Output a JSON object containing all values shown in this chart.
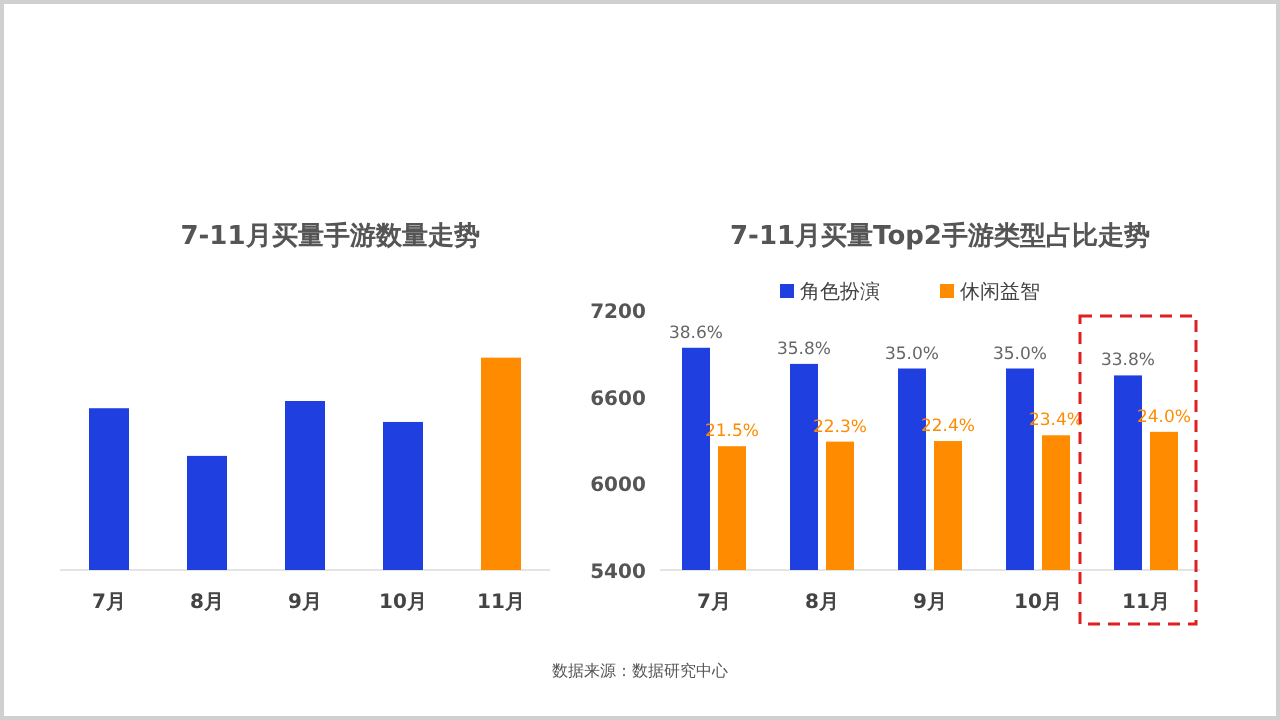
{
  "chart_data": [
    {
      "type": "bar",
      "title": "7-11月买量手游数量走势",
      "categories": [
        "7月",
        "8月",
        "9月",
        "10月",
        "11月"
      ],
      "values": [
        6520,
        6190,
        6570,
        6425,
        6870
      ],
      "colors": [
        "#1f3fe0",
        "#1f3fe0",
        "#1f3fe0",
        "#1f3fe0",
        "#ff8c00"
      ],
      "ylim": [
        5400,
        7200
      ],
      "yticks": [
        5400,
        6000,
        6600,
        7200
      ]
    },
    {
      "type": "bar",
      "title": "7-11月买量Top2手游类型占比走势",
      "categories": [
        "7月",
        "8月",
        "9月",
        "10月",
        "11月"
      ],
      "legend": "top",
      "series": [
        {
          "name": "角色扮演",
          "color": "#1f3fe0",
          "values": [
            38.6,
            35.8,
            35.0,
            35.0,
            33.8
          ],
          "value_labels": [
            "38.6%",
            "35.8%",
            "35.0%",
            "35.0%",
            "33.8%"
          ]
        },
        {
          "name": "休闲益智",
          "color": "#ff8c00",
          "values": [
            21.5,
            22.3,
            22.4,
            23.4,
            24.0
          ],
          "value_labels": [
            "21.5%",
            "22.3%",
            "22.4%",
            "23.4%",
            "24.0%"
          ]
        }
      ],
      "annotations": [
        "数据来源：数据研究中心"
      ]
    }
  ]
}
